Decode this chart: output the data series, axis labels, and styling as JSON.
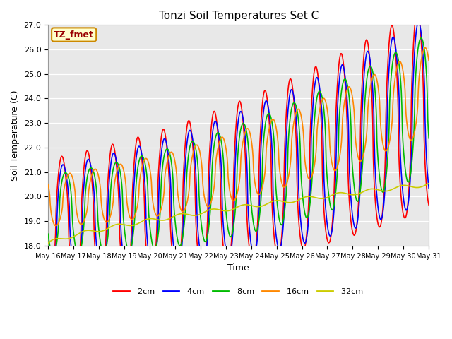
{
  "title": "Tonzi Soil Temperatures Set C",
  "xlabel": "Time",
  "ylabel": "Soil Temperature (C)",
  "ylim": [
    18.0,
    27.0
  ],
  "yticks": [
    18.0,
    19.0,
    20.0,
    21.0,
    22.0,
    23.0,
    24.0,
    25.0,
    26.0,
    27.0
  ],
  "xtick_labels": [
    "May 16",
    "May 17",
    "May 18",
    "May 19",
    "May 20",
    "May 21",
    "May 22",
    "May 23",
    "May 24",
    "May 25",
    "May 26",
    "May 27",
    "May 28",
    "May 29",
    "May 30",
    "May 31"
  ],
  "legend_labels": [
    "-2cm",
    "-4cm",
    "-8cm",
    "-16cm",
    "-32cm"
  ],
  "line_colors": [
    "#ff0000",
    "#0000ff",
    "#00bb00",
    "#ff8800",
    "#cccc00"
  ],
  "annotation_text": "TZ_fmet",
  "annotation_bg": "#ffffcc",
  "annotation_border": "#cc8800",
  "plot_bg": "#e8e8e8",
  "line_width": 1.2,
  "n_points": 720
}
